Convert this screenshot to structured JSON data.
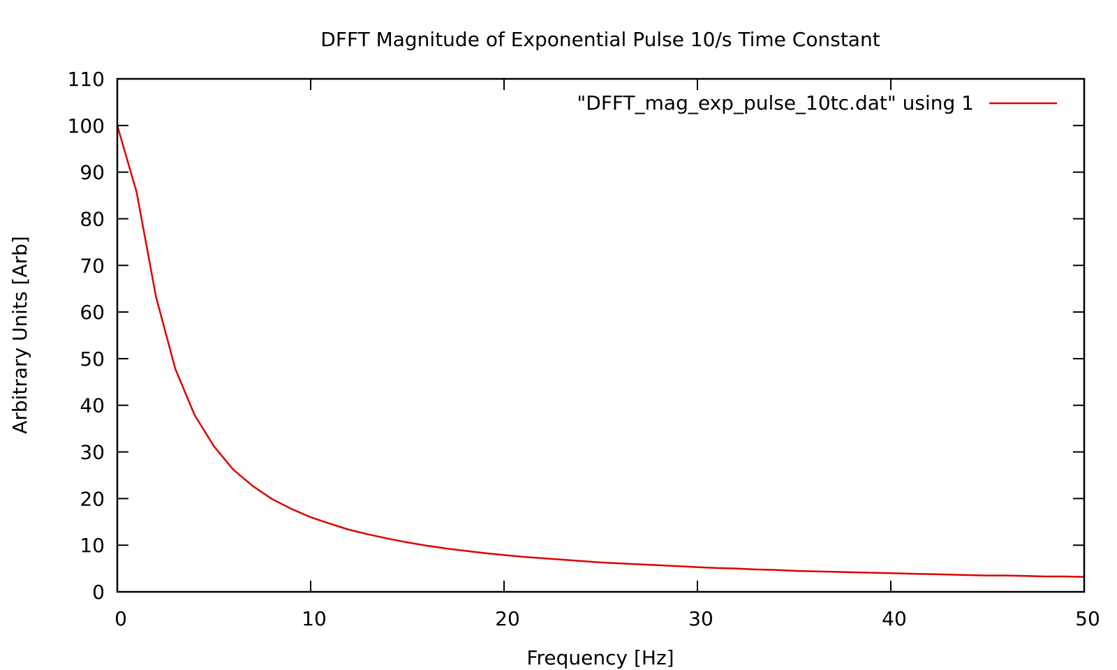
{
  "chart_data": {
    "type": "line",
    "title": "DFFT Magnitude of Exponential Pulse 10/s Time Constant",
    "xlabel": "Frequency [Hz]",
    "ylabel": "Arbitrary Units [Arb]",
    "xlim": [
      0,
      50
    ],
    "ylim": [
      0,
      110
    ],
    "xticks": [
      "0",
      "10",
      "20",
      "30",
      "40",
      "50"
    ],
    "yticks": [
      "0",
      "10",
      "20",
      "30",
      "40",
      "50",
      "60",
      "70",
      "80",
      "90",
      "100",
      "110"
    ],
    "grid": false,
    "legend_position": "top-right",
    "series": [
      {
        "name": "\"DFFT_mag_exp_pulse_10tc.dat\" using 1",
        "color": "#dd0000",
        "x": [
          0,
          1,
          2,
          3,
          4,
          5,
          6,
          7,
          8,
          9,
          10,
          11,
          12,
          13,
          14,
          15,
          16,
          17,
          18,
          19,
          20,
          21,
          22,
          23,
          24,
          25,
          26,
          27,
          28,
          29,
          30,
          31,
          32,
          33,
          34,
          35,
          36,
          37,
          38,
          39,
          40,
          41,
          42,
          43,
          44,
          45,
          46,
          47,
          48,
          49,
          50
        ],
        "y": [
          100,
          85.7,
          63.3,
          47.8,
          37.9,
          31.2,
          26.2,
          22.7,
          19.9,
          17.8,
          16,
          14.6,
          13.3,
          12.3,
          11.4,
          10.6,
          9.9,
          9.3,
          8.8,
          8.3,
          7.9,
          7.5,
          7.2,
          6.9,
          6.6,
          6.3,
          6.1,
          5.9,
          5.7,
          5.5,
          5.3,
          5.1,
          5,
          4.8,
          4.7,
          4.5,
          4.4,
          4.3,
          4.2,
          4.1,
          4,
          3.9,
          3.8,
          3.7,
          3.6,
          3.5,
          3.5,
          3.4,
          3.3,
          3.3,
          3.2
        ]
      }
    ]
  }
}
